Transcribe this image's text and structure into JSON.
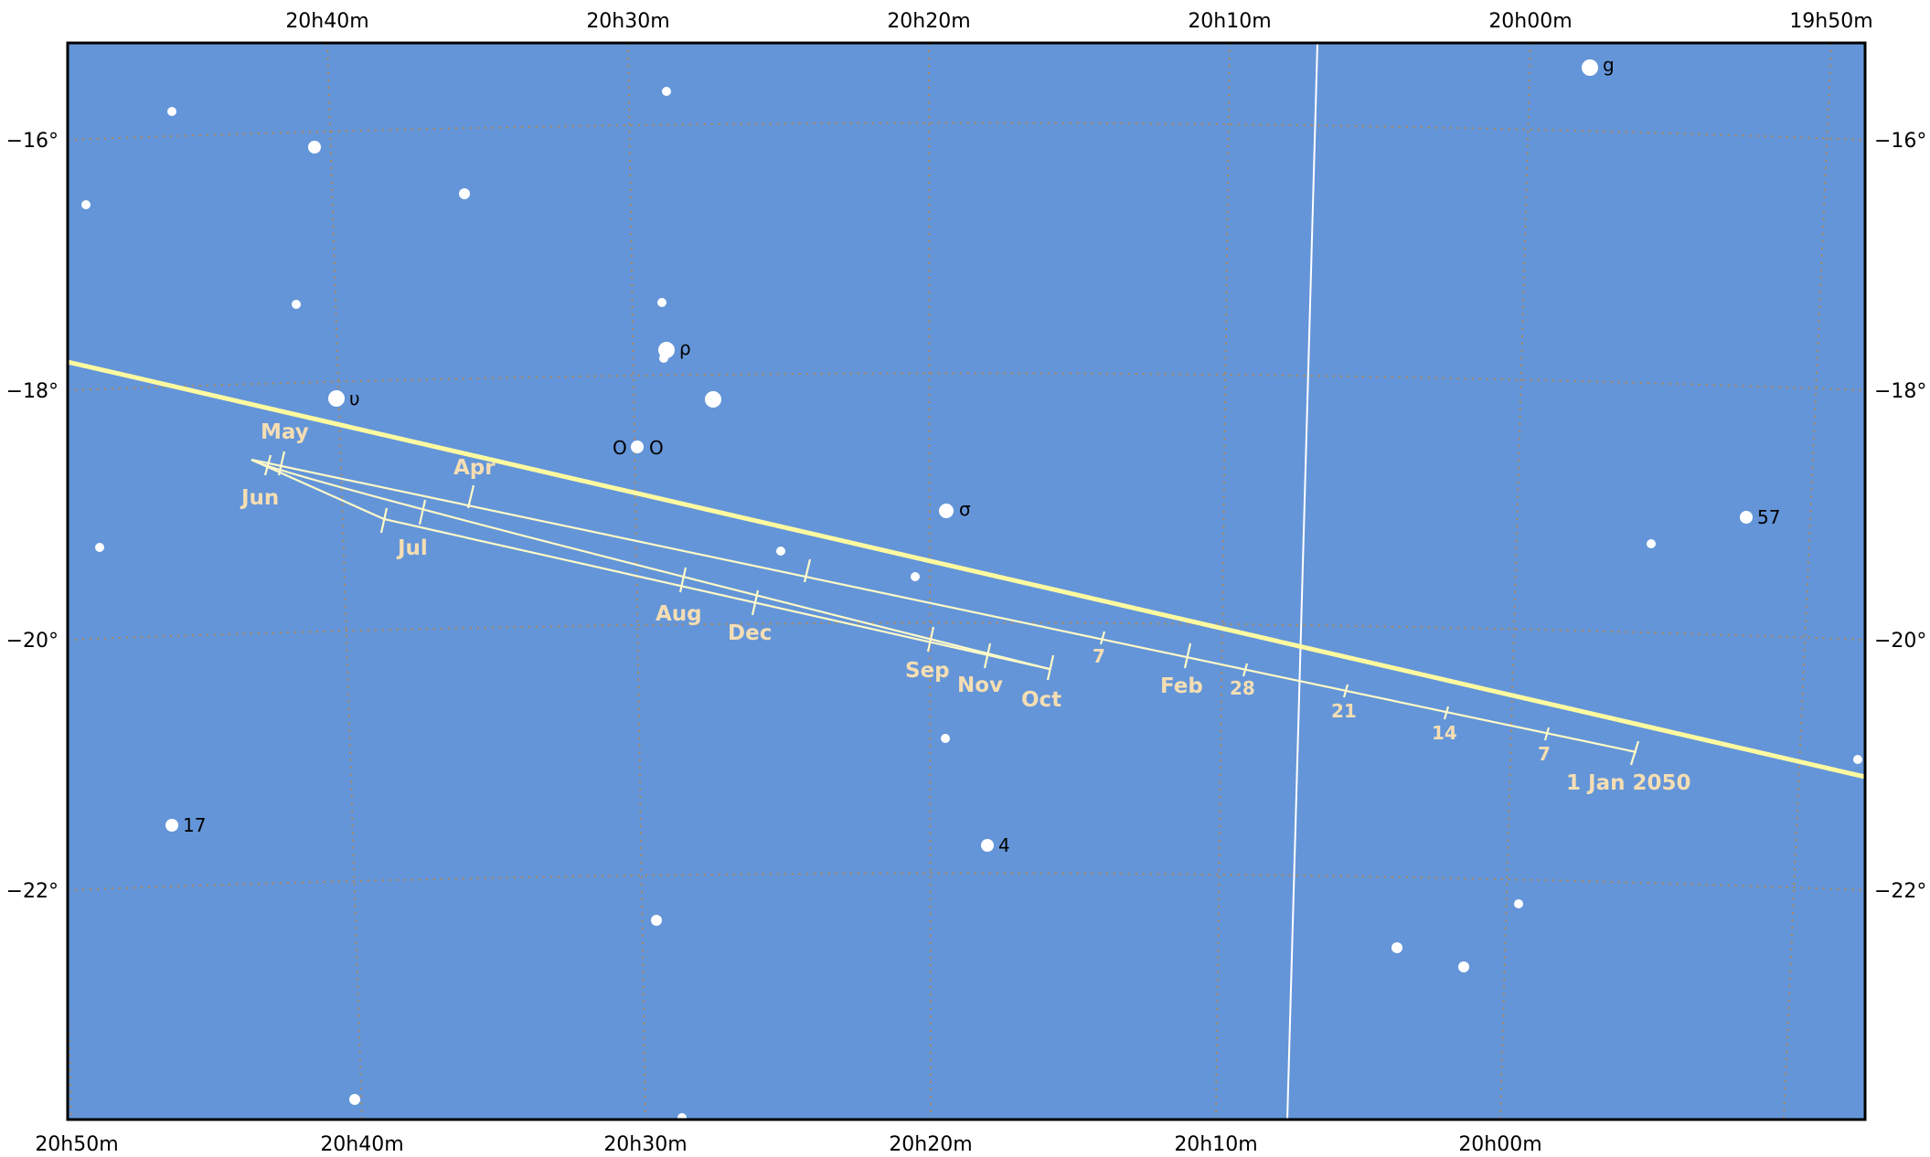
{
  "chart_data": {
    "type": "map",
    "colors": {
      "sky": "#6495d8",
      "frame": "#000000",
      "grid": "#b08a5a",
      "ecliptic": "#fffaa0",
      "path": "#fffac8",
      "stars": "#ffffff",
      "galactic": "#ffffff"
    },
    "ra_axis_top": [
      "20h40m",
      "20h30m",
      "20h20m",
      "20h10m",
      "20h00m",
      "19h50m"
    ],
    "ra_axis_bottom": [
      "20h50m",
      "20h40m",
      "20h30m",
      "20h20m",
      "20h10m",
      "20h00m"
    ],
    "dec_axis_left": [
      "−16°",
      "−18°",
      "−20°",
      "−22°"
    ],
    "dec_axis_right": [
      "−16°",
      "−18°",
      "−20°",
      "−22°"
    ],
    "star_labels": [
      "υ",
      "ρ",
      "O",
      "O",
      "σ",
      "g",
      "57",
      "17",
      "4"
    ],
    "path_labels": {
      "months": [
        "May",
        "Apr",
        "Jun",
        "Jul",
        "Aug",
        "Dec",
        "Sep",
        "Nov",
        "Oct",
        "Feb"
      ],
      "days": [
        "7",
        "28",
        "21",
        "14",
        "7"
      ],
      "start": "1 Jan 2050"
    }
  }
}
